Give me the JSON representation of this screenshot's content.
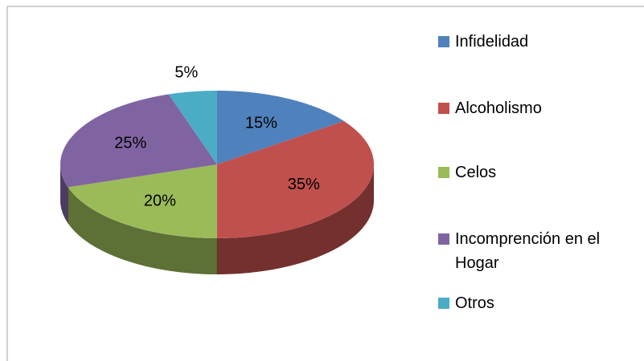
{
  "chart_data": {
    "type": "pie",
    "categories": [
      "Infidelidad",
      "Alcoholismo",
      "Celos",
      "Incomprención en el Hogar",
      "Otros"
    ],
    "values": [
      15,
      35,
      20,
      25,
      5
    ],
    "value_labels": [
      "15%",
      "35%",
      "20%",
      "25%",
      "5%"
    ],
    "colors": [
      "#4f81bd",
      "#c0504d",
      "#9bbb59",
      "#8064a2",
      "#4bacc6"
    ],
    "legend": "right"
  }
}
